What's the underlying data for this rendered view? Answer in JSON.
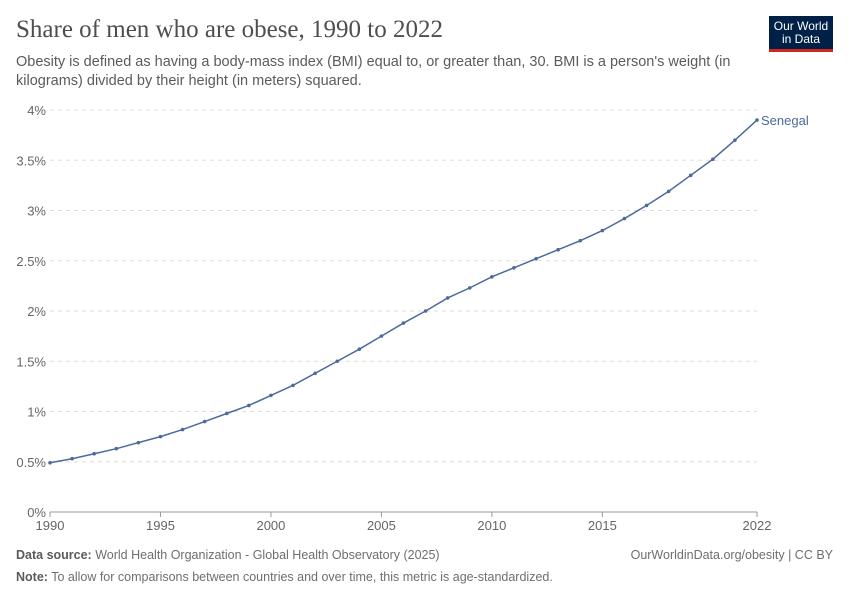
{
  "header": {
    "title": "Share of men who are obese, 1990 to 2022",
    "subtitle": "Obesity is defined as having a body-mass index (BMI) equal to, or greater than, 30. BMI is a person's weight (in kilograms) divided by their height (in meters) squared.",
    "logo": "Our World in Data"
  },
  "footer": {
    "source_label": "Data source:",
    "source": "World Health Organization - Global Health Observatory (2025)",
    "note_label": "Note:",
    "note": "To allow for comparisons between countries and over time, this metric is age-standardized.",
    "link": "OurWorldinData.org/obesity | CC BY"
  },
  "chart_data": {
    "type": "line",
    "ylim": [
      0,
      4
    ],
    "xlim": [
      1990,
      2022
    ],
    "grid": "horizontal dashed",
    "yticks": [
      "0%",
      "0.5%",
      "1%",
      "1.5%",
      "2%",
      "2.5%",
      "3%",
      "3.5%",
      "4%"
    ],
    "xticks": [
      "1990",
      "1995",
      "2000",
      "2005",
      "2010",
      "2015",
      "2022"
    ],
    "series": [
      {
        "name": "Senegal",
        "color": "#4c6a9c",
        "x": [
          1990,
          1991,
          1992,
          1993,
          1994,
          1995,
          1996,
          1997,
          1998,
          1999,
          2000,
          2001,
          2002,
          2003,
          2004,
          2005,
          2006,
          2007,
          2008,
          2009,
          2010,
          2011,
          2012,
          2013,
          2014,
          2015,
          2016,
          2017,
          2018,
          2019,
          2020,
          2021,
          2022
        ],
        "y": [
          0.49,
          0.53,
          0.58,
          0.63,
          0.69,
          0.75,
          0.82,
          0.9,
          0.98,
          1.06,
          1.16,
          1.26,
          1.38,
          1.5,
          1.62,
          1.75,
          1.88,
          2.0,
          2.13,
          2.23,
          2.34,
          2.43,
          2.52,
          2.61,
          2.7,
          2.8,
          2.92,
          3.05,
          3.19,
          3.35,
          3.51,
          3.7,
          3.9
        ]
      }
    ]
  }
}
